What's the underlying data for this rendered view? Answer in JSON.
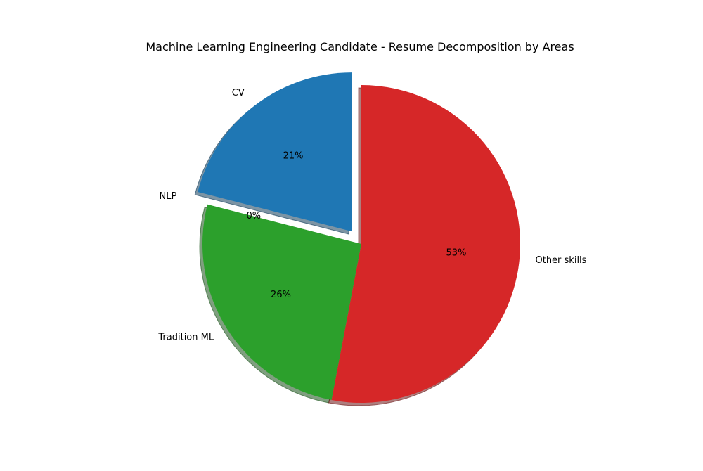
{
  "chart_data": {
    "type": "pie",
    "title": "Machine Learning Engineering Candidate - Resume Decomposition by Areas",
    "slices": [
      {
        "label": "CV",
        "value": 21,
        "pct_label": "21%",
        "color": "#1f77b4",
        "explode": 0.1
      },
      {
        "label": "NLP",
        "value": 0,
        "pct_label": "0%",
        "color": "#ff7f0e",
        "explode": 0.1
      },
      {
        "label": "Tradition ML",
        "value": 26,
        "pct_label": "26%",
        "color": "#2ca02c",
        "explode": 0
      },
      {
        "label": "Other skills",
        "value": 53,
        "pct_label": "53%",
        "color": "#d62728",
        "explode": 0
      }
    ],
    "start_angle_deg": 90,
    "direction": "counterclockwise",
    "shadow": true
  }
}
